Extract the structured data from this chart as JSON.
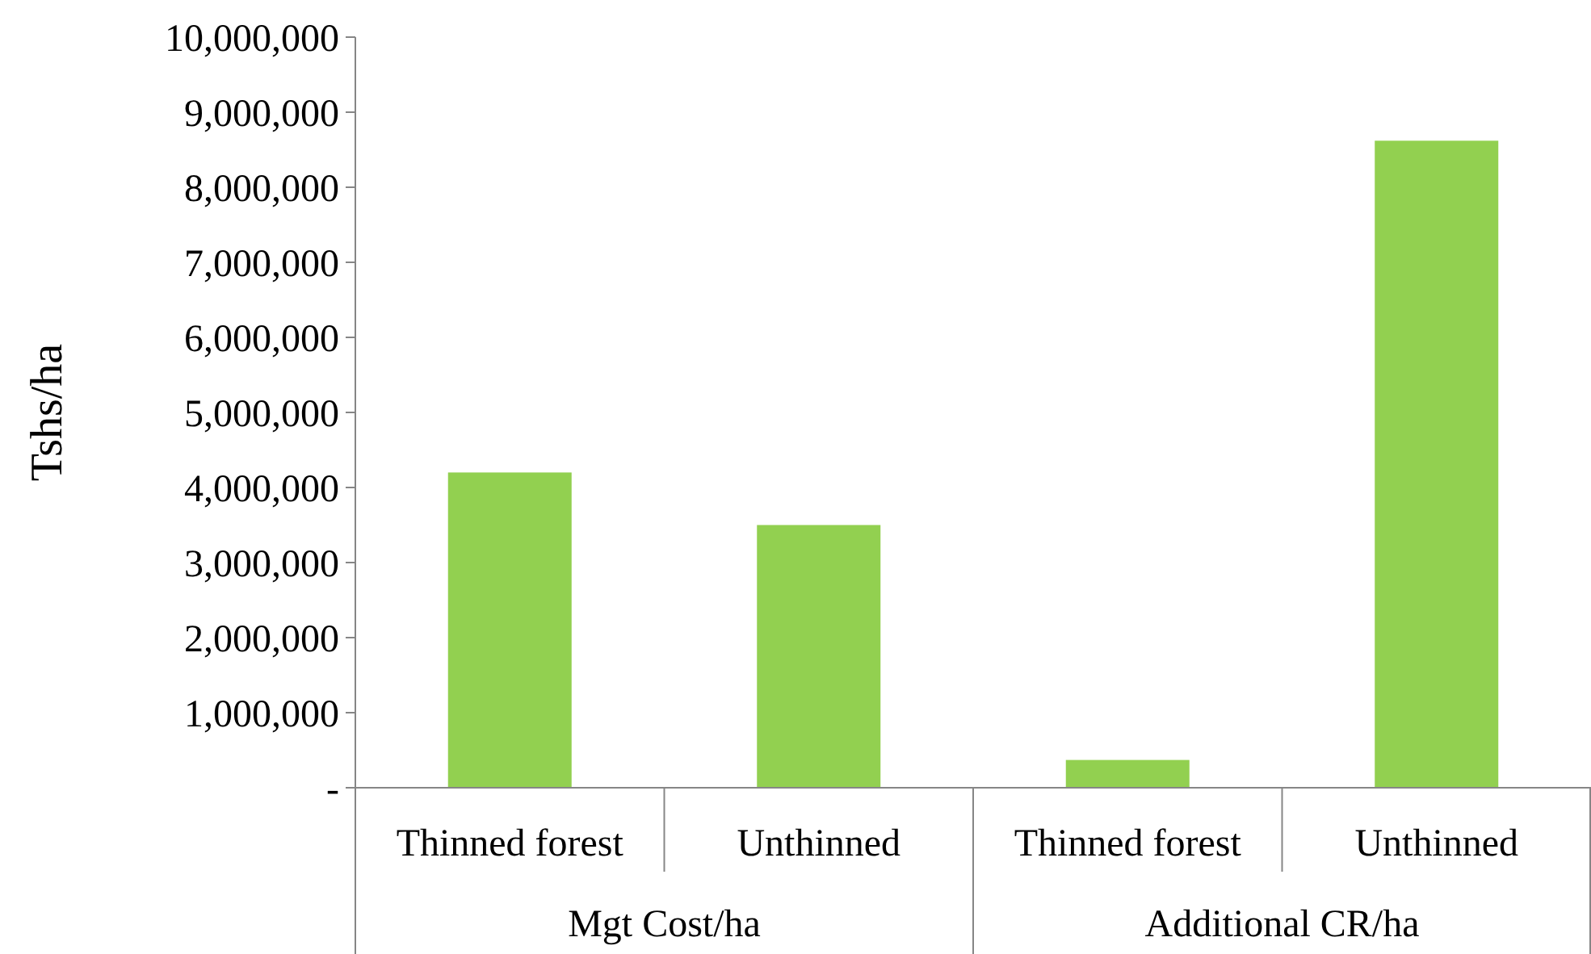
{
  "chart_data": {
    "type": "bar",
    "ylabel": "Tshs/ha",
    "categories": [
      "Thinned forest",
      "Unthinned",
      "Thinned forest",
      "Unthinned"
    ],
    "values": [
      4200000,
      3500000,
      370000,
      8620000
    ],
    "color": "#92d050",
    "annotations": [
      "Mgt Cost/ha",
      "Additional CR/ha"
    ],
    "ylim": [
      0,
      10000000
    ],
    "yticks": [
      {
        "value": 0,
        "label": "-"
      },
      {
        "value": 1000000,
        "label": "1,000,000"
      },
      {
        "value": 2000000,
        "label": "2,000,000"
      },
      {
        "value": 3000000,
        "label": "3,000,000"
      },
      {
        "value": 4000000,
        "label": "4,000,000"
      },
      {
        "value": 5000000,
        "label": "5,000,000"
      },
      {
        "value": 6000000,
        "label": "6,000,000"
      },
      {
        "value": 7000000,
        "label": "7,000,000"
      },
      {
        "value": 8000000,
        "label": "8,000,000"
      },
      {
        "value": 9000000,
        "label": "9,000,000"
      },
      {
        "value": 10000000,
        "label": "10,000,000"
      }
    ],
    "grid": false
  }
}
